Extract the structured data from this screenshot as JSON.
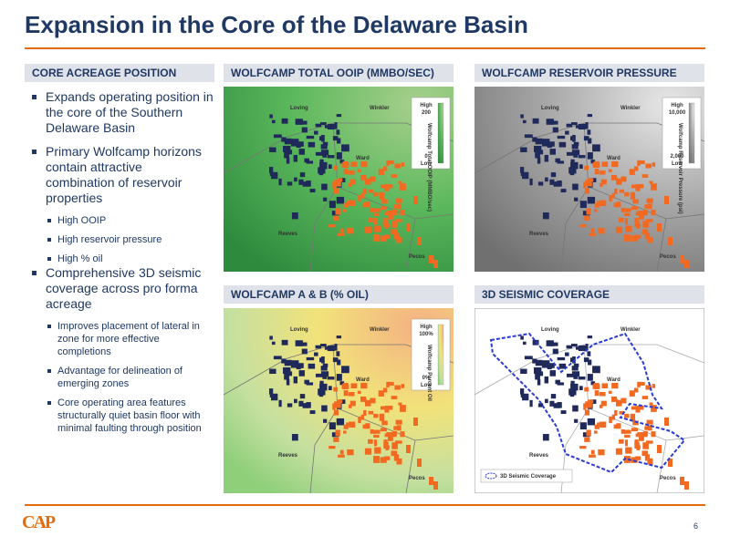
{
  "title": "Expansion in the Core of the Delaware Basin",
  "page_number": "6",
  "logo": "CAP",
  "left": {
    "header": "CORE ACREAGE POSITION",
    "bullets": [
      {
        "text": "Expands operating position in the core of the Southern Delaware Basin"
      },
      {
        "text": "Primary Wolfcamp horizons contain attractive combination of reservoir properties",
        "sub": [
          "High OOIP",
          "High reservoir pressure",
          "High % oil"
        ]
      },
      {
        "text": "Comprehensive 3D seismic coverage across pro forma acreage",
        "sub": [
          "Improves placement of lateral in zone for more effective completions",
          "Advantage for delineation of emerging zones",
          "Core operating area features structurally quiet basin floor with minimal faulting through position"
        ]
      }
    ]
  },
  "maps": [
    {
      "title": "WOLFCAMP TOTAL OOIP (MMBO/SEC)",
      "counties": [
        "Loving",
        "Winkler",
        "Ward",
        "Reeves",
        "Pecos"
      ],
      "legend": {
        "high": "High",
        "max": "200",
        "label": "Wolfcamp Total OOIP (MMBO/sec)",
        "min": "0",
        "low": "Low"
      }
    },
    {
      "title": "WOLFCAMP RESERVOIR PRESSURE",
      "counties": [
        "Loving",
        "Winkler",
        "Ward",
        "Reeves",
        "Pecos"
      ],
      "legend": {
        "high": "High",
        "max": "10,000",
        "label": "Wolfcamp Reservoir Pressure (psi)",
        "min": "2,000",
        "low": "Low"
      }
    },
    {
      "title": "WOLFCAMP A & B (% OIL)",
      "counties": [
        "Loving",
        "Winkler",
        "Ward",
        "Reeves",
        "Pecos"
      ],
      "legend": {
        "high": "High",
        "max": "100%",
        "label": "Wolfcamp Percent Oil",
        "min": "0%",
        "low": "Low"
      }
    },
    {
      "title": "3D SEISMIC COVERAGE",
      "counties": [
        "Loving",
        "Winkler",
        "Ward",
        "Reeves",
        "Pecos"
      ],
      "legend": {
        "label": "3D Seismic Coverage"
      }
    }
  ]
}
